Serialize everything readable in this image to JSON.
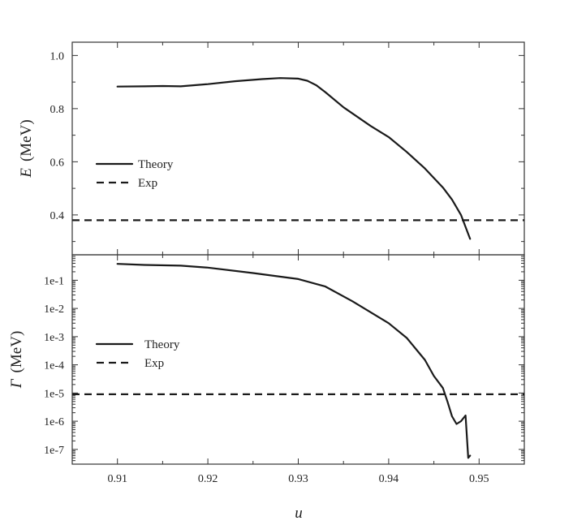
{
  "chart_data": [
    {
      "type": "line",
      "panel": "top",
      "ylabel_symbol": "E",
      "ylabel_unit": "(MeV)",
      "ylim": [
        0.25,
        1.05
      ],
      "xlim": [
        0.905,
        0.955
      ],
      "yticks": [
        0.4,
        0.6,
        0.8,
        1.0
      ],
      "ytick_labels": [
        "0.4",
        "0.6",
        "0.8",
        "1.0"
      ],
      "legend": {
        "position": "center-left",
        "entries": [
          "Theory",
          "Exp"
        ]
      },
      "series": [
        {
          "name": "Theory",
          "style": "solid",
          "x": [
            0.91,
            0.913,
            0.915,
            0.917,
            0.92,
            0.923,
            0.926,
            0.928,
            0.93,
            0.931,
            0.932,
            0.933,
            0.935,
            0.938,
            0.94,
            0.942,
            0.944,
            0.946,
            0.947,
            0.948,
            0.9485,
            0.949
          ],
          "y": [
            0.883,
            0.884,
            0.885,
            0.884,
            0.892,
            0.903,
            0.911,
            0.915,
            0.913,
            0.905,
            0.888,
            0.862,
            0.805,
            0.735,
            0.693,
            0.637,
            0.575,
            0.503,
            0.458,
            0.4,
            0.355,
            0.31
          ]
        },
        {
          "name": "Exp",
          "style": "dashed",
          "x": [
            0.905,
            0.955
          ],
          "y": [
            0.38,
            0.38
          ]
        }
      ]
    },
    {
      "type": "line",
      "panel": "bottom",
      "ylabel_symbol": "Γ",
      "ylabel_unit": "(MeV)",
      "yscale": "log",
      "ylim": [
        3e-08,
        0.8
      ],
      "xlim": [
        0.905,
        0.955
      ],
      "xlabel": "u",
      "xticks": [
        0.91,
        0.92,
        0.93,
        0.94,
        0.95
      ],
      "xtick_labels": [
        "0.91",
        "0.92",
        "0.93",
        "0.94",
        "0.95"
      ],
      "yticks": [
        1e-07,
        1e-06,
        1e-05,
        0.0001,
        0.001,
        0.01,
        0.1
      ],
      "ytick_labels": [
        "1e-7",
        "1e-6",
        "1e-5",
        "1e-4",
        "1e-3",
        "1e-2",
        "1e-1"
      ],
      "legend": {
        "position": "center-left",
        "entries": [
          "Theory",
          "Exp"
        ]
      },
      "series": [
        {
          "name": "Theory",
          "style": "solid",
          "x": [
            0.91,
            0.913,
            0.917,
            0.92,
            0.925,
            0.93,
            0.933,
            0.936,
            0.94,
            0.942,
            0.944,
            0.945,
            0.946,
            0.9465,
            0.947,
            0.9475,
            0.948,
            0.9485,
            0.9487,
            0.9488,
            0.949
          ],
          "y": [
            0.38,
            0.35,
            0.33,
            0.28,
            0.18,
            0.11,
            0.06,
            0.018,
            0.003,
            0.0009,
            0.00015,
            4e-05,
            1.5e-05,
            5e-06,
            1.5e-06,
            8e-07,
            1e-06,
            1.6e-06,
            1.6e-07,
            5e-08,
            6e-08
          ]
        },
        {
          "name": "Exp",
          "style": "dashed",
          "x": [
            0.905,
            0.955
          ],
          "y": [
            9e-06,
            9e-06
          ]
        }
      ]
    }
  ]
}
